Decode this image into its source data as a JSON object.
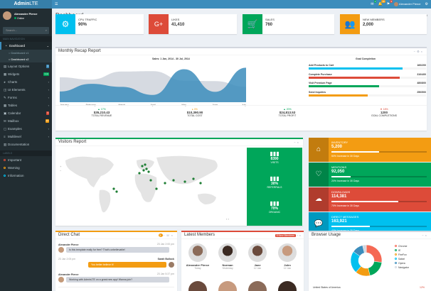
{
  "header": {
    "logo_bold": "Admin",
    "logo_rest": "LTE",
    "user_name": "Alexander Pierce",
    "badges": [
      "4",
      "10",
      "9"
    ]
  },
  "sidebar": {
    "user_name": "Alexander Pierce",
    "user_status": "Online",
    "search_placeholder": "Search...",
    "nav_header": "MAIN NAVIGATION",
    "dashboard_label": "Dashboard",
    "sub_items": [
      "Dashboard v1",
      "Dashboard v2"
    ],
    "items": [
      {
        "label": "Layout Options",
        "badge": "4",
        "badge_color": "#3c8dbc"
      },
      {
        "label": "Widgets",
        "badge": "new",
        "badge_color": "#00a65a"
      },
      {
        "label": "Charts"
      },
      {
        "label": "UI Elements"
      },
      {
        "label": "Forms"
      },
      {
        "label": "Tables"
      },
      {
        "label": "Calendar",
        "badge": "3",
        "badge_color": "#dd4b39"
      },
      {
        "label": "Mailbox",
        "badge": "12",
        "badge_color": "#f39c12"
      },
      {
        "label": "Examples"
      },
      {
        "label": "Multilevel"
      },
      {
        "label": "Documentation"
      }
    ],
    "labels_header": "LABELS",
    "labels": [
      {
        "label": "Important",
        "color": "#dd4b39"
      },
      {
        "label": "Warning",
        "color": "#f39c12"
      },
      {
        "label": "Information",
        "color": "#00c0ef"
      }
    ]
  },
  "page": {
    "title": "Dashboard",
    "version": "Version 2.0",
    "breadcrumb_home": "Home",
    "breadcrumb_current": "Dashboard"
  },
  "info_boxes": [
    {
      "title": "CPU TRAFFIC",
      "value": "90%",
      "color": "#00c0ef",
      "icon": "gear-icon"
    },
    {
      "title": "LIKES",
      "value": "41,410",
      "color": "#dd4b39",
      "icon": "google-plus-icon"
    },
    {
      "title": "SALES",
      "value": "760",
      "color": "#00a65a",
      "icon": "cart-icon"
    },
    {
      "title": "NEW MEMBERS",
      "value": "2,000",
      "color": "#f39c12",
      "icon": "users-icon"
    }
  ],
  "recap": {
    "title": "Monthly Recap Report",
    "chart_title": "Sales: 1 Jan, 2014 - 30 Jul, 2014",
    "goal_title": "Goal Completion",
    "goals": [
      {
        "label": "Add Products to Cart",
        "value": "160/200",
        "fraction": 0.8,
        "color": "#00c0ef"
      },
      {
        "label": "Complete Purchase",
        "value": "310/400",
        "fraction": 0.775,
        "color": "#dd4b39"
      },
      {
        "label": "Visit Premium Page",
        "value": "480/800",
        "fraction": 0.6,
        "color": "#00a65a"
      },
      {
        "label": "Send Inquiries",
        "value": "250/500",
        "fraction": 0.5,
        "color": "#f39c12"
      }
    ],
    "stats": [
      {
        "pct": "▲ 17%",
        "amount": "$35,210.43",
        "label": "TOTAL REVENUE",
        "color": "#00a65a"
      },
      {
        "pct": "▸ 0%",
        "amount": "$10,390.90",
        "label": "TOTAL COST",
        "color": "#f39c12"
      },
      {
        "pct": "▲ 20%",
        "amount": "$24,813.53",
        "label": "TOTAL PROFIT",
        "color": "#00a65a"
      },
      {
        "pct": "▼ 18%",
        "amount": "1200",
        "label": "GOAL COMPLETIONS",
        "color": "#dd4b39"
      }
    ]
  },
  "chart_data": {
    "type": "area",
    "title": "Sales: 1 Jan, 2014 - 30 Jul, 2014",
    "categories": [
      "January",
      "February",
      "March",
      "April",
      "May",
      "June",
      "July"
    ],
    "series": [
      {
        "name": "Electronics",
        "values": [
          65,
          59,
          80,
          81,
          56,
          55,
          40
        ],
        "color": "#d2d6de"
      },
      {
        "name": "Digital Goods",
        "values": [
          28,
          48,
          40,
          19,
          86,
          27,
          90
        ],
        "color": "#3c8dbc"
      }
    ],
    "ylim": [
      0,
      100
    ]
  },
  "visitors": {
    "title": "Visitors Report",
    "stats": [
      {
        "value": "8390",
        "label": "VISITS"
      },
      {
        "value": "30%",
        "label": "REFERRALS"
      },
      {
        "value": "70%",
        "label": "ORGANIC"
      }
    ]
  },
  "info_cards": [
    {
      "title": "INVENTORY",
      "value": "5,200",
      "desc": "50% Increase in 30 Days",
      "fraction": 0.5,
      "color": "#f39c12",
      "icon": "tag-icon"
    },
    {
      "title": "MENTIONS",
      "value": "92,050",
      "desc": "20% Increase in 30 Days",
      "fraction": 0.2,
      "color": "#00a65a",
      "icon": "heart-icon"
    },
    {
      "title": "DOWNLOADS",
      "value": "114,381",
      "desc": "70% Increase in 30 Days",
      "fraction": 0.7,
      "color": "#dd4b39",
      "icon": "cloud-download-icon"
    },
    {
      "title": "DIRECT MESSAGES",
      "value": "163,921",
      "desc": "40% Increase in 30 Days",
      "fraction": 0.4,
      "color": "#00c0ef",
      "icon": "comments-icon"
    }
  ],
  "chat": {
    "title": "Direct Chat",
    "badge": "3",
    "messages": [
      {
        "name": "Alexander Pierce",
        "time": "23 Jan 2:00 pm",
        "text": "Is this template really for free? That's unbelievable!",
        "side": "left"
      },
      {
        "name": "Sarah Bullock",
        "time": "23 Jan 2:05 pm",
        "text": "You better believe it!",
        "side": "right"
      },
      {
        "name": "Alexander Pierce",
        "time": "23 Jan 5:37 pm",
        "text": "Working with AdminLTE on a great new app! Wanna join?",
        "side": "left"
      }
    ]
  },
  "members": {
    "title": "Latest Members",
    "badge": "8 New Members",
    "list": [
      {
        "name": "Alexander Pierce",
        "date": "Today"
      },
      {
        "name": "Norman",
        "date": "Yesterday"
      },
      {
        "name": "Jane",
        "date": "12 Jan"
      },
      {
        "name": "John",
        "date": "12 Jan"
      }
    ]
  },
  "browser": {
    "title": "Browser Usage",
    "legend": [
      {
        "name": "Chrome",
        "color": "#f56954"
      },
      {
        "name": "IE",
        "color": "#00a65a"
      },
      {
        "name": "FireFox",
        "color": "#f39c12"
      },
      {
        "name": "Safari",
        "color": "#00c0ef"
      },
      {
        "name": "Opera",
        "color": "#3c8dbc"
      },
      {
        "name": "Navigator",
        "color": "#d2d6de"
      }
    ],
    "footer_item": "United States of America",
    "footer_value": "12%"
  },
  "browser_chart": {
    "type": "pie",
    "labels": [
      "Chrome",
      "IE",
      "FireFox",
      "Safari",
      "Opera",
      "Navigator"
    ],
    "values": [
      700,
      500,
      400,
      600,
      300,
      100
    ]
  }
}
